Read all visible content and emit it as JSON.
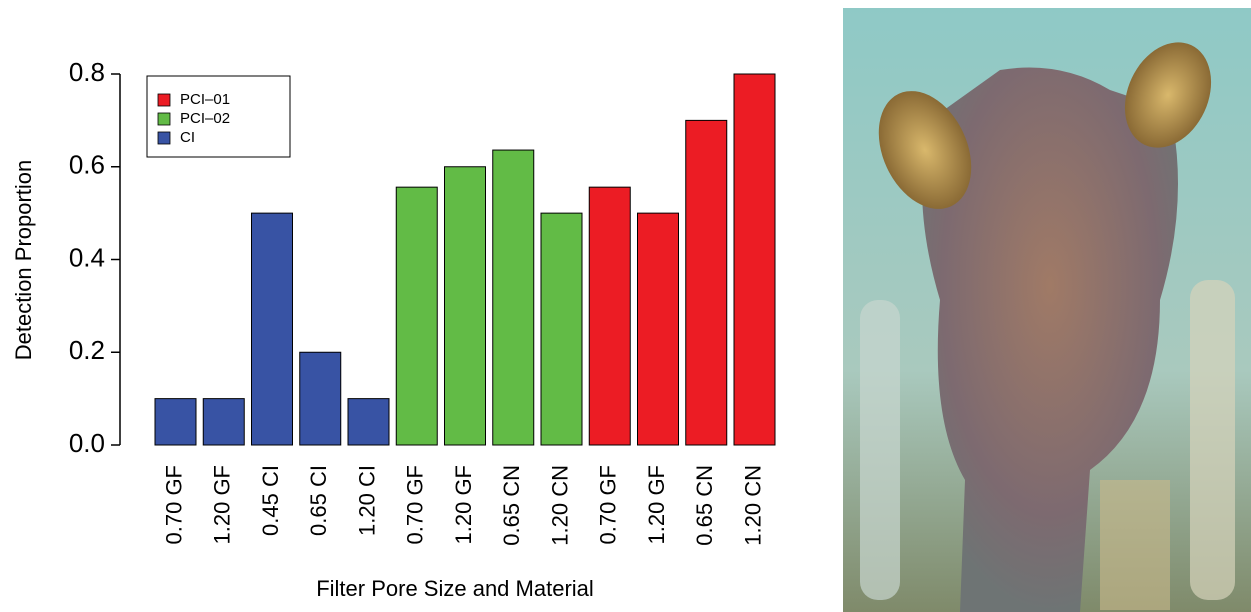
{
  "chart_data": {
    "type": "bar",
    "y_label": "Detection Proportion",
    "x_label": "Filter Pore Size and Material",
    "categories": [
      "0.70 GF",
      "1.20 GF",
      "0.45 CI",
      "0.65 CI",
      "1.20 CI",
      "0.70 GF",
      "1.20 GF",
      "0.65 CN",
      "1.20 CN",
      "0.70 GF",
      "1.20 GF",
      "0.65 CN",
      "1.20 CN"
    ],
    "series": [
      {
        "name": "PCI–01",
        "color": "#ec1c24",
        "values": [
          null,
          null,
          null,
          null,
          null,
          null,
          null,
          null,
          null,
          0.556,
          0.5,
          0.7,
          0.8
        ]
      },
      {
        "name": "PCI–02",
        "color": "#62bb46",
        "values": [
          null,
          null,
          null,
          null,
          null,
          0.556,
          0.6,
          0.636,
          0.5,
          null,
          null,
          null,
          null
        ]
      },
      {
        "name": "CI",
        "color": "#3853a4",
        "values": [
          0.1,
          0.1,
          0.5,
          0.2,
          0.1,
          null,
          null,
          null,
          null,
          null,
          null,
          null,
          null
        ]
      }
    ],
    "ylim": [
      0,
      0.8
    ],
    "yticks": [
      {
        "value": 0,
        "label": "0.0"
      },
      0.2,
      0.4,
      0.6,
      0.8
    ],
    "legend": "top-left"
  }
}
